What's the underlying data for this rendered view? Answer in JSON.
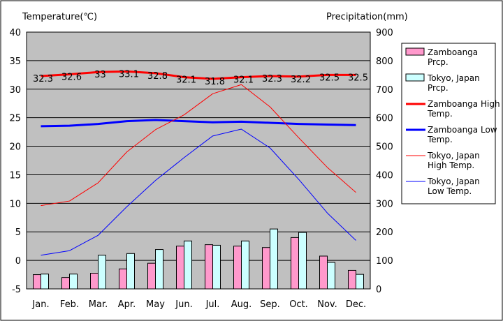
{
  "chart_data": {
    "type": "bar",
    "y_left_label": "Temperature(℃)",
    "y_right_label": "Precipitation(mm)",
    "categories": [
      "Jan.",
      "Feb.",
      "Mar.",
      "Apr.",
      "May",
      "Jun.",
      "Jul.",
      "Aug.",
      "Sep.",
      "Oct.",
      "Nov.",
      "Dec."
    ],
    "y_left_range": [
      -5,
      40
    ],
    "y_left_ticks": [
      -5,
      0,
      5,
      10,
      15,
      20,
      25,
      30,
      35,
      40
    ],
    "y_right_range": [
      0,
      900
    ],
    "y_right_ticks": [
      0,
      100,
      200,
      300,
      400,
      500,
      600,
      700,
      800,
      900
    ],
    "grid": true,
    "legend_placement": "right",
    "series": [
      {
        "name": "Zamboanga Prcp.",
        "name_lines": [
          "Zamboanga",
          "Prcp."
        ],
        "kind": "bar",
        "axis": "right",
        "color": "#ff99cc",
        "values": [
          50,
          40,
          55,
          70,
          90,
          150,
          155,
          150,
          145,
          180,
          115,
          65
        ]
      },
      {
        "name": "Tokyo, Japan Prcp.",
        "name_lines": [
          "Tokyo, Japan",
          "Prcp."
        ],
        "kind": "bar",
        "axis": "right",
        "color": "#ccffff",
        "values": [
          52,
          52,
          118,
          124,
          138,
          168,
          153,
          168,
          210,
          198,
          93,
          51
        ]
      },
      {
        "name": "Zamboanga High Temp.",
        "name_lines": [
          "Zamboanga High",
          "Temp."
        ],
        "kind": "line",
        "axis": "left",
        "color": "#ff0000",
        "width": 3,
        "values": [
          32.3,
          32.6,
          33,
          33.1,
          32.8,
          32.1,
          31.8,
          32.1,
          32.3,
          32.2,
          32.5,
          32.5
        ],
        "data_labels": [
          "32.3",
          "32.6",
          "33",
          "33.1",
          "32.8",
          "32.1",
          "31.8",
          "32.1",
          "32.3",
          "32.2",
          "32.5",
          "32.5"
        ]
      },
      {
        "name": "Zamboanga Low Temp.",
        "name_lines": [
          "Zamboanga Low",
          "Temp."
        ],
        "kind": "line",
        "axis": "left",
        "color": "#0000ff",
        "width": 3,
        "values": [
          23.5,
          23.6,
          23.9,
          24.4,
          24.6,
          24.4,
          24.2,
          24.3,
          24.1,
          23.9,
          23.8,
          23.7
        ]
      },
      {
        "name": "Tokyo, Japan High Temp.",
        "name_lines": [
          "Tokyo, Japan",
          "High Temp."
        ],
        "kind": "line",
        "axis": "left",
        "color": "#ff0000",
        "width": 1,
        "values": [
          9.6,
          10.4,
          13.6,
          19.0,
          22.9,
          25.5,
          29.2,
          30.8,
          26.9,
          21.5,
          16.3,
          11.9
        ]
      },
      {
        "name": "Tokyo, Japan Low Temp.",
        "name_lines": [
          "Tokyo, Japan",
          "Low Temp."
        ],
        "kind": "line",
        "axis": "left",
        "color": "#0000ff",
        "width": 1,
        "values": [
          0.9,
          1.7,
          4.4,
          9.4,
          14.0,
          18.0,
          21.8,
          23.0,
          19.7,
          14.2,
          8.3,
          3.5
        ]
      }
    ]
  }
}
